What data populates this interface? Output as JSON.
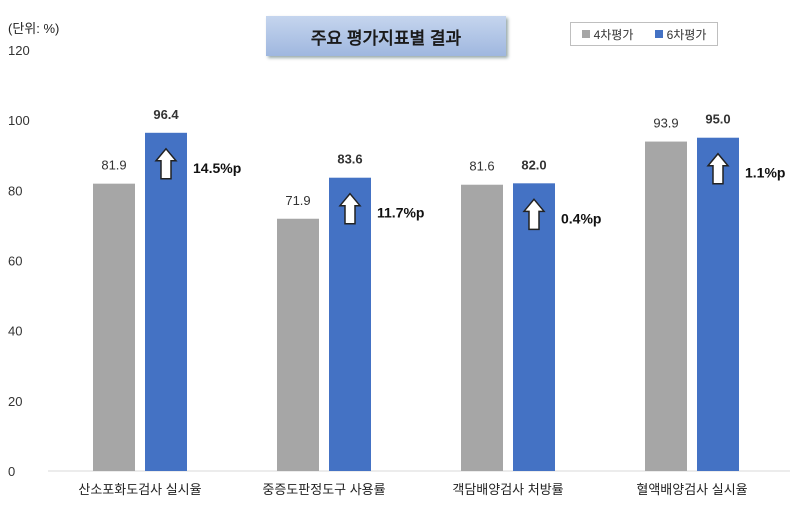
{
  "unit_label": "(단위: %)",
  "chart_data": {
    "type": "bar",
    "title": "주요 평가지표별 결과",
    "categories": [
      "산소포화도검사 실시율",
      "중증도판정도구 사용률",
      "객담배양검사 처방률",
      "혈액배양검사 실시율"
    ],
    "series": [
      {
        "name": "4차평가",
        "color": "#a6a6a6",
        "values": [
          81.9,
          71.9,
          81.6,
          93.9
        ]
      },
      {
        "name": "6차평가",
        "color": "#4472c4",
        "values": [
          96.4,
          83.6,
          82.0,
          95.0
        ]
      }
    ],
    "changes": [
      "14.5%p",
      "11.7%p",
      "0.4%p",
      "1.1%p"
    ],
    "ylim": [
      0,
      120
    ],
    "yticks": [
      0,
      20,
      40,
      60,
      80,
      100,
      120
    ],
    "legend_position": "top-right",
    "grid": false
  }
}
